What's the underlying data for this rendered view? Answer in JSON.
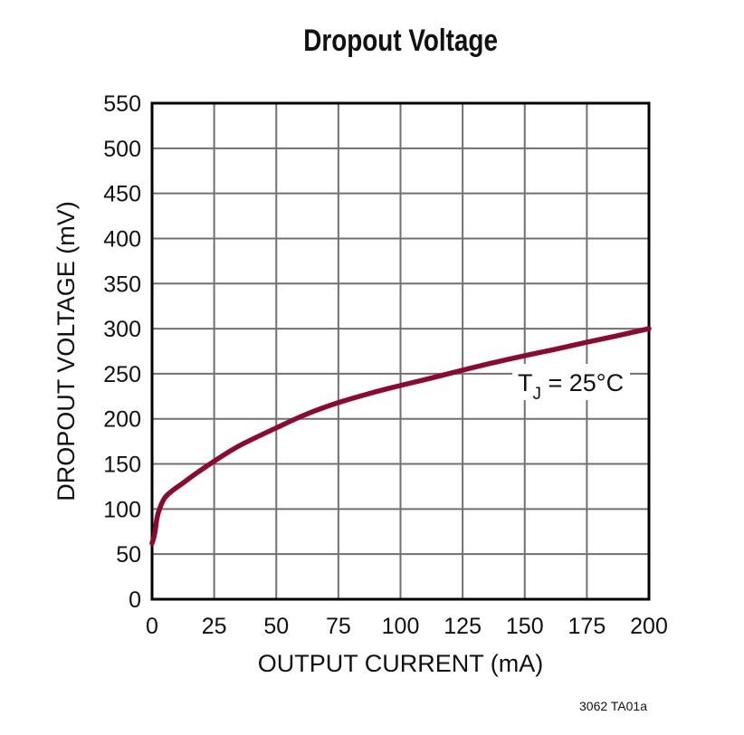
{
  "title": "Dropout Voltage",
  "footnote": "3062 TA01a",
  "annotation": {
    "main": "T",
    "sub": "J",
    "rest": " = 25°C"
  },
  "colors": {
    "curve": "#8b0a2e",
    "grid": "#707070",
    "axis": "#000000"
  },
  "chart_data": {
    "type": "line",
    "title": "Dropout Voltage",
    "xlabel": "OUTPUT CURRENT (mA)",
    "ylabel": "DROPOUT VOLTAGE (mV)",
    "xlim": [
      0,
      200
    ],
    "ylim": [
      0,
      550
    ],
    "xticks": [
      0,
      25,
      50,
      75,
      100,
      125,
      150,
      175,
      200
    ],
    "yticks": [
      0,
      50,
      100,
      150,
      200,
      250,
      300,
      350,
      400,
      450,
      500,
      550
    ],
    "grid": true,
    "legend": null,
    "annotations": [
      {
        "text": "TJ = 25°C",
        "x": 155,
        "y": 240
      }
    ],
    "series": [
      {
        "name": "TJ = 25°C",
        "x": [
          0,
          1,
          2,
          3,
          5,
          8,
          12,
          18,
          25,
          35,
          50,
          62,
          75,
          90,
          100,
          112,
          125,
          137,
          150,
          162,
          175,
          187,
          200
        ],
        "values": [
          62,
          72,
          90,
          100,
          112,
          120,
          128,
          140,
          153,
          170,
          190,
          205,
          218,
          230,
          237,
          245,
          254,
          262,
          270,
          277,
          285,
          292,
          300
        ]
      }
    ]
  }
}
